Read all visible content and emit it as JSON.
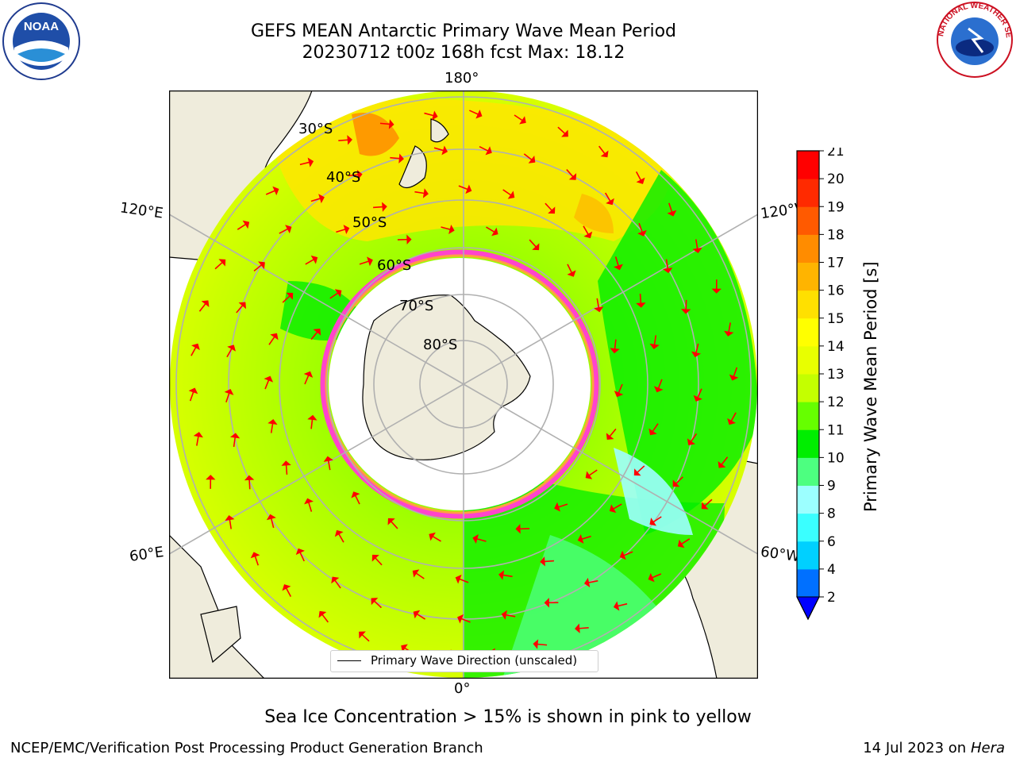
{
  "title": {
    "line1": "GEFS MEAN Antarctic Primary Wave Mean Period",
    "line2": "20230712 t00z 168h fcst   Max: 18.12"
  },
  "map": {
    "longitude_labels": {
      "top": "180°",
      "bottom": "0°",
      "upper_left": "120°E",
      "upper_right": "120°W",
      "lower_left": "60°E",
      "lower_right": "60°W"
    },
    "latitude_labels": [
      "30°S",
      "40°S",
      "50°S",
      "60°S",
      "70°S",
      "80°S"
    ],
    "legend_label": "Primary Wave Direction (unscaled)",
    "arrow_color": "#ff0000",
    "land_color": "#efecdc",
    "ice_edge_colors": [
      "#ff44cc",
      "#ffa040"
    ]
  },
  "colorbar": {
    "title": "Primary Wave Mean Period [s]",
    "ticks": [
      "2",
      "4",
      "6",
      "8",
      "9",
      "10",
      "11",
      "12",
      "13",
      "14",
      "15",
      "16",
      "17",
      "18",
      "19",
      "20",
      "21"
    ],
    "colors": [
      "#0070ff",
      "#00d0ff",
      "#3affff",
      "#9cffff",
      "#4dff80",
      "#00ee00",
      "#66ff00",
      "#c4ff00",
      "#e8ff00",
      "#ffff00",
      "#ffe000",
      "#ffb400",
      "#ff8c00",
      "#ff5a00",
      "#ff2a00",
      "#ff0000"
    ],
    "extend_color": "#0000ff"
  },
  "footnote": "Sea Ice Concentration > 15% is shown in pink to yellow",
  "credit_left": "NCEP/EMC/Verification Post Processing Product Generation Branch",
  "credit_right_date": "14 Jul 2023 on",
  "credit_right_host": "Hera",
  "logos": {
    "left": "NOAA",
    "right": "NATIONAL WEATHER SERVICE"
  }
}
